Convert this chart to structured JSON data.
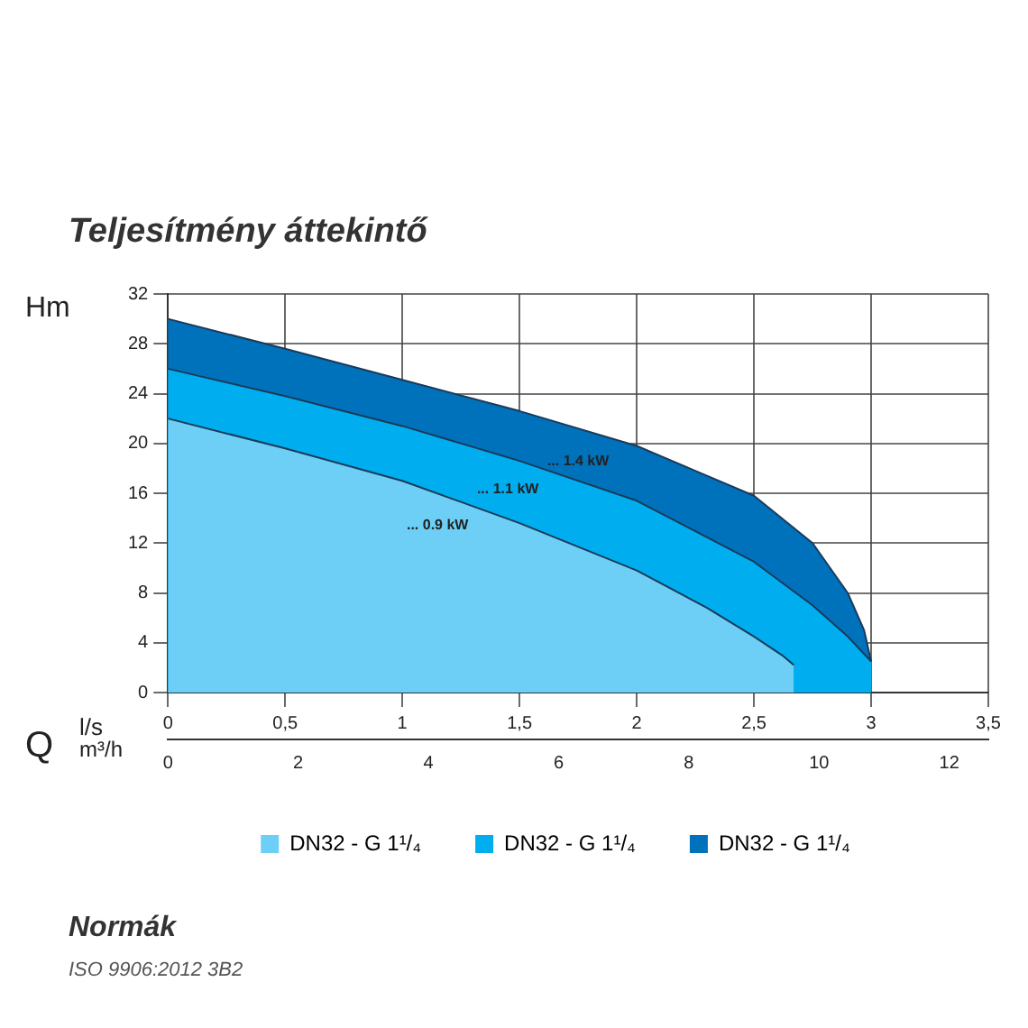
{
  "chart_data": {
    "type": "area",
    "title": "Teljesítmény áttekintő",
    "ylabel": "Hm",
    "xlabel": "l/s",
    "x2label": "m³/h",
    "annotations": [
      "Q",
      {
        "text": "... 0.9 kW",
        "x": 1.15,
        "y": 16
      },
      {
        "text": "... 1.1 kW",
        "x": 1.45,
        "y": 18.9
      },
      {
        "text": "... 1.4 kW",
        "x": 1.75,
        "y": 21.2
      },
      "Normák",
      "ISO 9906:2012 3B2"
    ],
    "series": [
      {
        "name": "DN32 - G 1¹/₄",
        "color": "#6dcff6",
        "x": [
          0,
          0.5,
          1,
          1.5,
          2,
          2.3,
          2.5,
          2.62,
          2.67
        ],
        "values": [
          22,
          19.6,
          17,
          13.6,
          9.8,
          6.8,
          4.5,
          3,
          2.2
        ]
      },
      {
        "name": "DN32 - G 1¹/₄",
        "color": "#00aeef",
        "x": [
          0,
          0.5,
          1,
          1.5,
          2,
          2.5,
          2.75,
          2.9,
          3
        ],
        "values": [
          26,
          23.8,
          21.4,
          18.6,
          15.4,
          10.5,
          7,
          4.5,
          2.5
        ]
      },
      {
        "name": "DN32 - G 1¹/₄",
        "color": "#0072bc",
        "x": [
          0,
          0.5,
          1,
          1.5,
          2,
          2.5,
          2.75,
          2.9,
          2.97,
          3
        ],
        "values": [
          30,
          27.6,
          25.1,
          22.6,
          19.8,
          15.8,
          12,
          8,
          5,
          2.5
        ]
      }
    ],
    "xlim": [
      0,
      3.5
    ],
    "xticks": [
      0,
      {
        "value": 0.5,
        "label": "0,5"
      },
      1,
      {
        "value": 1.5,
        "label": "1,5"
      },
      2,
      {
        "value": 2.5,
        "label": "2,5"
      },
      3,
      {
        "value": 3.5,
        "label": "3,5"
      }
    ],
    "x2lim": [
      0,
      12.6
    ],
    "x2ticks": [
      0,
      2,
      4,
      6,
      8,
      10,
      12
    ],
    "ylim": [
      0,
      32
    ],
    "yticks": [
      0,
      4,
      8,
      12,
      16,
      20,
      24,
      28,
      32
    ],
    "grid": true,
    "legend": "bottom",
    "marker": "none",
    "line_style": "solid"
  }
}
